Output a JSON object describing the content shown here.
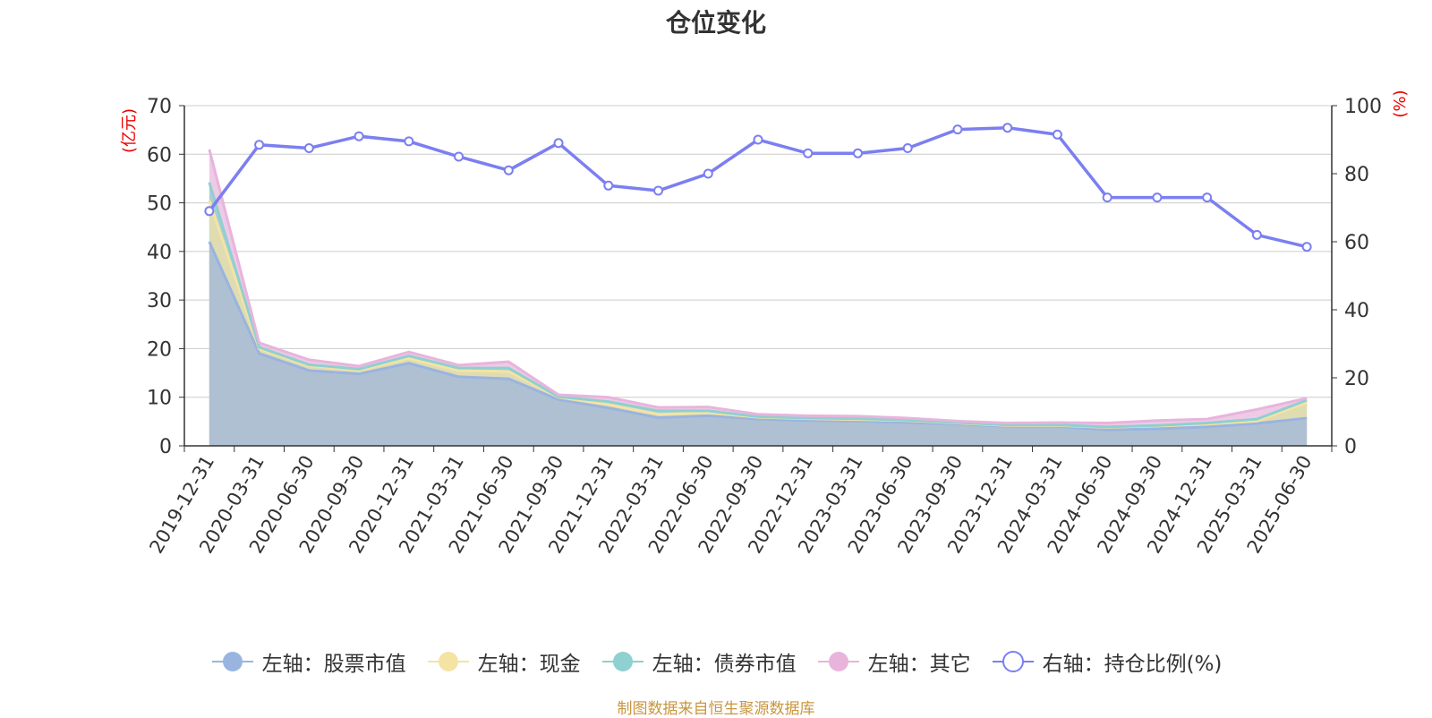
{
  "chart_data": {
    "type": "area",
    "title": "仓位变化",
    "left_axis_label": "(亿元)",
    "right_axis_label": "(%)",
    "ylim_left": [
      0,
      70
    ],
    "yticks_left": [
      0,
      10,
      20,
      30,
      40,
      50,
      60,
      70
    ],
    "ylim_right": [
      0,
      100
    ],
    "yticks_right": [
      0,
      20,
      40,
      60,
      80,
      100
    ],
    "grid": true,
    "legend_position": "bottom",
    "categories": [
      "2019-12-31",
      "2020-03-31",
      "2020-06-30",
      "2020-09-30",
      "2020-12-31",
      "2021-03-31",
      "2021-06-30",
      "2021-09-30",
      "2021-12-31",
      "2022-03-31",
      "2022-06-30",
      "2022-09-30",
      "2022-12-31",
      "2023-03-31",
      "2023-06-30",
      "2023-09-30",
      "2023-12-31",
      "2024-03-31",
      "2024-06-30",
      "2024-09-30",
      "2024-12-31",
      "2025-03-31",
      "2025-06-30"
    ],
    "series": [
      {
        "name": "左轴：股票市值",
        "axis": "left",
        "kind": "stacked-area",
        "color": "#9ab4e0",
        "values": [
          42,
          19,
          15.5,
          14.8,
          17,
          14.2,
          13.8,
          9.5,
          7.8,
          5.8,
          6.2,
          5.5,
          5.2,
          5.1,
          4.8,
          4.5,
          4.0,
          4.0,
          3.3,
          3.5,
          3.9,
          4.6,
          5.7
        ]
      },
      {
        "name": "左轴：现金",
        "axis": "left",
        "kind": "stacked-area",
        "color": "#f5e3a3",
        "values": [
          8.5,
          1.0,
          1.0,
          0.8,
          1.0,
          1.3,
          1.5,
          0.5,
          0.7,
          0.7,
          0.6,
          0.4,
          0.4,
          0.3,
          0.4,
          0.2,
          0.2,
          0.2,
          0.5,
          0.6,
          0.6,
          0.5,
          3.2
        ]
      },
      {
        "name": "左轴：债券市值",
        "axis": "left",
        "kind": "stacked-area",
        "color": "#8fd0d0",
        "values": [
          3.7,
          0.3,
          0.2,
          0.2,
          0.5,
          0.5,
          0.7,
          0.1,
          0.6,
          0.7,
          0.4,
          0.1,
          0.1,
          0.2,
          0.1,
          0.1,
          0.1,
          0.1,
          0.1,
          0.1,
          0.2,
          0.4,
          0.5
        ]
      },
      {
        "name": "左轴：其它",
        "axis": "left",
        "kind": "stacked-area",
        "color": "#e8b4dc",
        "values": [
          6.8,
          0.9,
          1.0,
          0.6,
          0.8,
          0.6,
          1.3,
          0.4,
          0.9,
          0.7,
          0.8,
          0.5,
          0.5,
          0.5,
          0.4,
          0.3,
          0.4,
          0.5,
          0.8,
          1.0,
          0.8,
          2.0,
          0.4
        ]
      },
      {
        "name": "右轴：持仓比例(%)",
        "axis": "right",
        "kind": "line",
        "color": "#7b7ff0",
        "values": [
          69,
          88.5,
          87.5,
          91,
          89.5,
          85,
          81,
          89,
          76.5,
          75,
          80,
          90,
          86,
          86,
          87.5,
          93,
          93.5,
          91.5,
          73,
          73,
          73,
          62,
          58.5
        ]
      }
    ]
  },
  "source_note": "制图数据来自恒生聚源数据库",
  "colors": {
    "axis_label_red": "#ee0000",
    "title": "#333333",
    "source_note": "#c8963e",
    "grid": "#cccccc"
  }
}
